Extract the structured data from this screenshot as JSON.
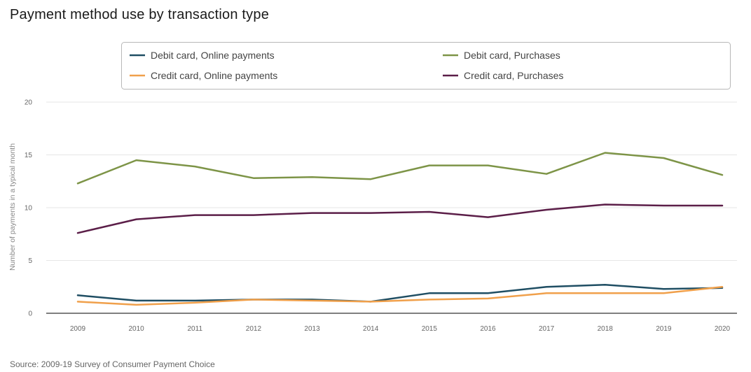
{
  "title": "Payment method use by transaction type",
  "source": "Source: 2009-19 Survey of Consumer Payment Choice",
  "chart_data": {
    "type": "line",
    "ylabel": "Number of payments in a typical month",
    "xlabel": "",
    "ylim": [
      0,
      20
    ],
    "yticks": [
      0,
      5,
      10,
      15,
      20
    ],
    "grid": true,
    "legend_position": "top",
    "x": [
      "2009",
      "2010",
      "2011",
      "2012",
      "2013",
      "2014",
      "2015",
      "2016",
      "2017",
      "2018",
      "2019",
      "2020"
    ],
    "series": [
      {
        "name": "Debit card, Online payments",
        "color": "#1f4e63",
        "values": [
          1.7,
          1.2,
          1.2,
          1.3,
          1.3,
          1.1,
          1.9,
          1.9,
          2.5,
          2.7,
          2.3,
          2.4
        ]
      },
      {
        "name": "Debit card, Purchases",
        "color": "#7d9447",
        "values": [
          12.3,
          14.5,
          13.9,
          12.8,
          12.9,
          12.7,
          14.0,
          14.0,
          13.2,
          15.2,
          14.7,
          13.1
        ]
      },
      {
        "name": "Credit card, Online payments",
        "color": "#f0a04b",
        "values": [
          1.1,
          0.8,
          1.0,
          1.3,
          1.2,
          1.1,
          1.3,
          1.4,
          1.9,
          1.9,
          1.9,
          2.5
        ]
      },
      {
        "name": "Credit card, Purchases",
        "color": "#5b1e48",
        "values": [
          7.6,
          8.9,
          9.3,
          9.3,
          9.5,
          9.5,
          9.6,
          9.1,
          9.8,
          10.3,
          10.2,
          10.2
        ]
      }
    ]
  }
}
